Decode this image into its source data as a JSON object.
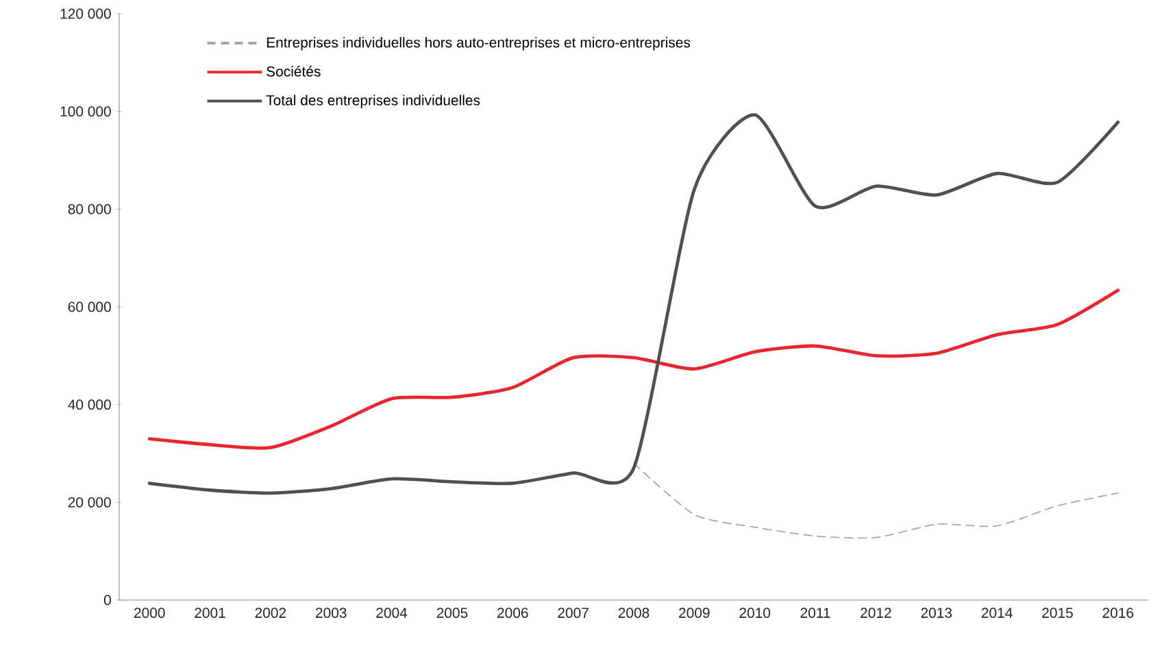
{
  "chart_data": {
    "type": "line",
    "categories": [
      "2000",
      "2001",
      "2002",
      "2003",
      "2004",
      "2005",
      "2006",
      "2007",
      "2008",
      "2009",
      "2010",
      "2011",
      "2012",
      "2013",
      "2014",
      "2015",
      "2016"
    ],
    "series": [
      {
        "name": "Entreprises individuelles hors auto-entreprises et micro-entreprises",
        "color": "#a6a6a6",
        "line_style": "dashed",
        "values": [
          null,
          null,
          null,
          null,
          null,
          null,
          null,
          null,
          28000,
          17500,
          14900,
          13100,
          12800,
          15500,
          15200,
          19300,
          21900
        ]
      },
      {
        "name": "Sociétés",
        "color": "#e8262d",
        "line_style": "solid",
        "values": [
          33000,
          31800,
          31200,
          35600,
          41200,
          41500,
          43500,
          49600,
          49600,
          47300,
          50800,
          52000,
          50000,
          50500,
          54300,
          56400,
          63400
        ]
      },
      {
        "name": "Total des entreprises individuelles",
        "color": "#505050",
        "line_style": "solid",
        "values": [
          23900,
          22500,
          21900,
          22800,
          24800,
          24200,
          23900,
          26000,
          27000,
          84000,
          99300,
          80600,
          84700,
          82900,
          87300,
          85500,
          97800
        ]
      }
    ],
    "ylim": [
      0,
      120000
    ],
    "yticks": [
      0,
      {
        "value": 20000,
        "label": "20 000"
      },
      {
        "value": 40000,
        "label": "40 000"
      },
      {
        "value": 60000,
        "label": "60 000"
      },
      {
        "value": 80000,
        "label": "80 000"
      },
      {
        "value": 100000,
        "label": "100 000"
      },
      {
        "value": 120000,
        "label": "120 000"
      }
    ],
    "grid": false,
    "legend": "top left",
    "marker": "none"
  }
}
